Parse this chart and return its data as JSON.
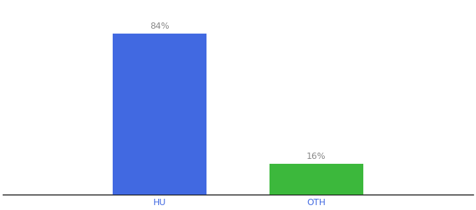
{
  "categories": [
    "HU",
    "OTH"
  ],
  "values": [
    84,
    16
  ],
  "bar_colors": [
    "#4169e1",
    "#3cb83c"
  ],
  "labels": [
    "84%",
    "16%"
  ],
  "background_color": "#ffffff",
  "label_color": "#888888",
  "axis_label_color": "#4169e1",
  "ylim": [
    0,
    100
  ],
  "bar_width": 0.18,
  "label_fontsize": 9,
  "tick_fontsize": 9,
  "x_positions": [
    0.35,
    0.65
  ]
}
